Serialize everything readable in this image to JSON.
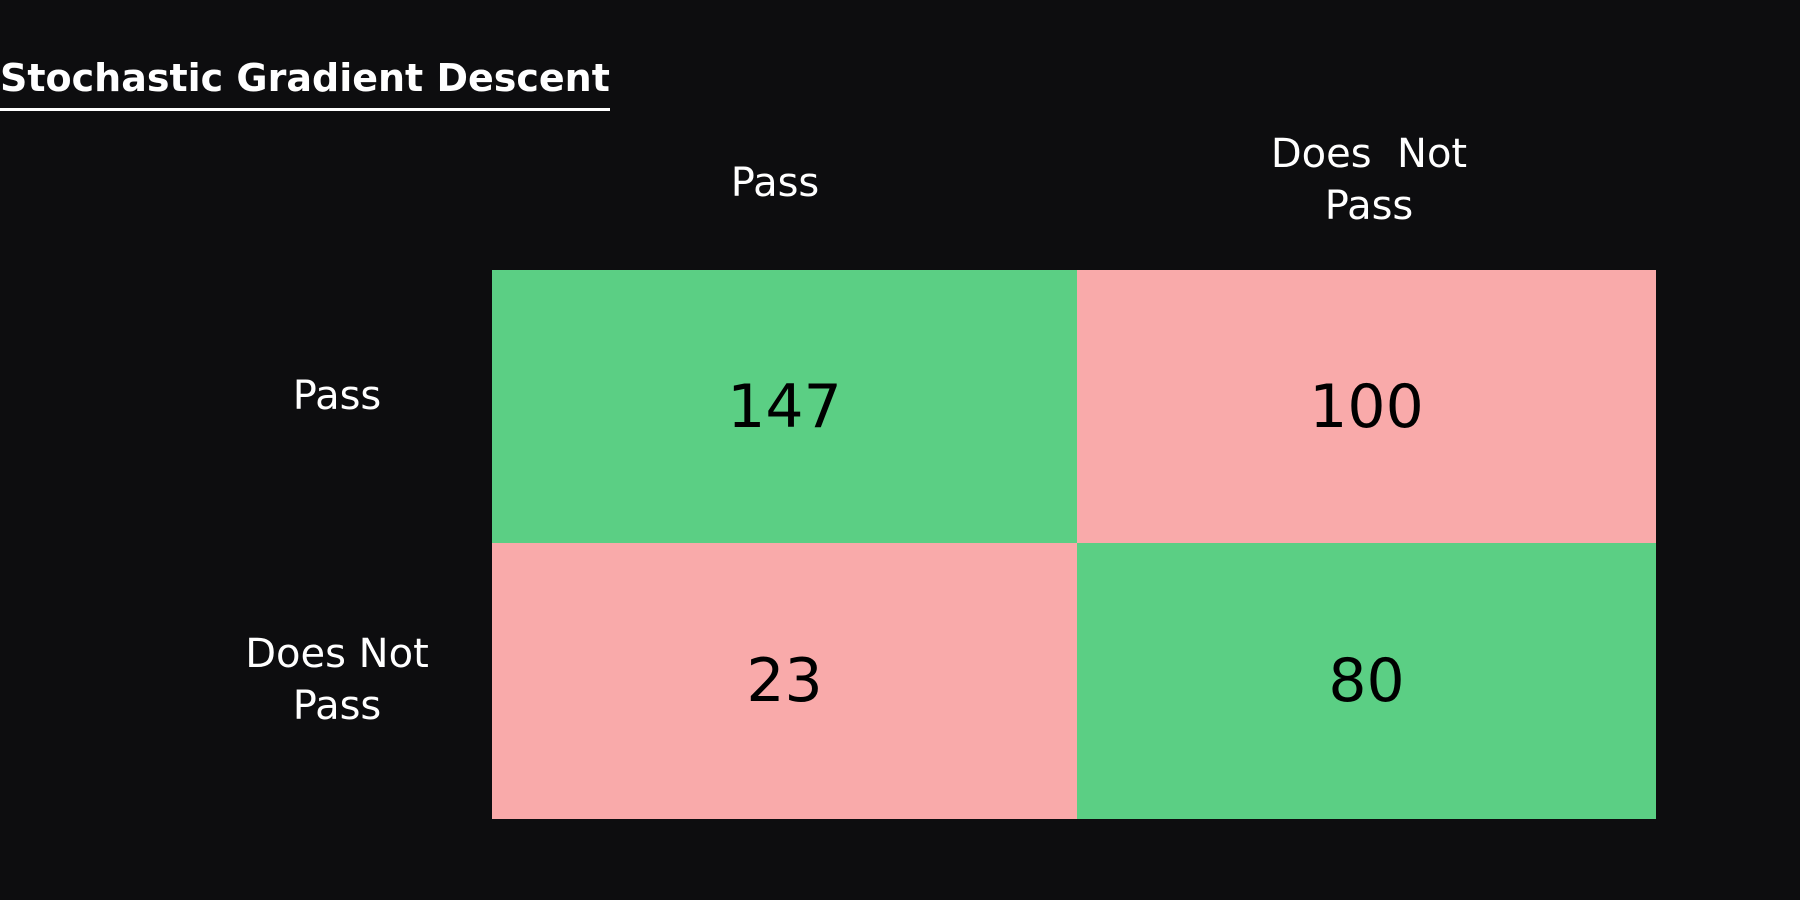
{
  "title": "Stochastic Gradient Descent",
  "colors": {
    "correct": "#5bcf84",
    "incorrect": "#f9aaaa",
    "background": "#0d0d0f",
    "text": "#ffffff",
    "cell_text": "#000000"
  },
  "chart_data": {
    "type": "heatmap",
    "title": "Stochastic Gradient Descent",
    "columns": [
      "Pass",
      "Does  Not\nPass"
    ],
    "rows": [
      "Pass",
      "Does Not\nPass"
    ],
    "values": [
      [
        147,
        100
      ],
      [
        23,
        80
      ]
    ],
    "correct_cells": [
      [
        0,
        0
      ],
      [
        1,
        1
      ]
    ]
  }
}
